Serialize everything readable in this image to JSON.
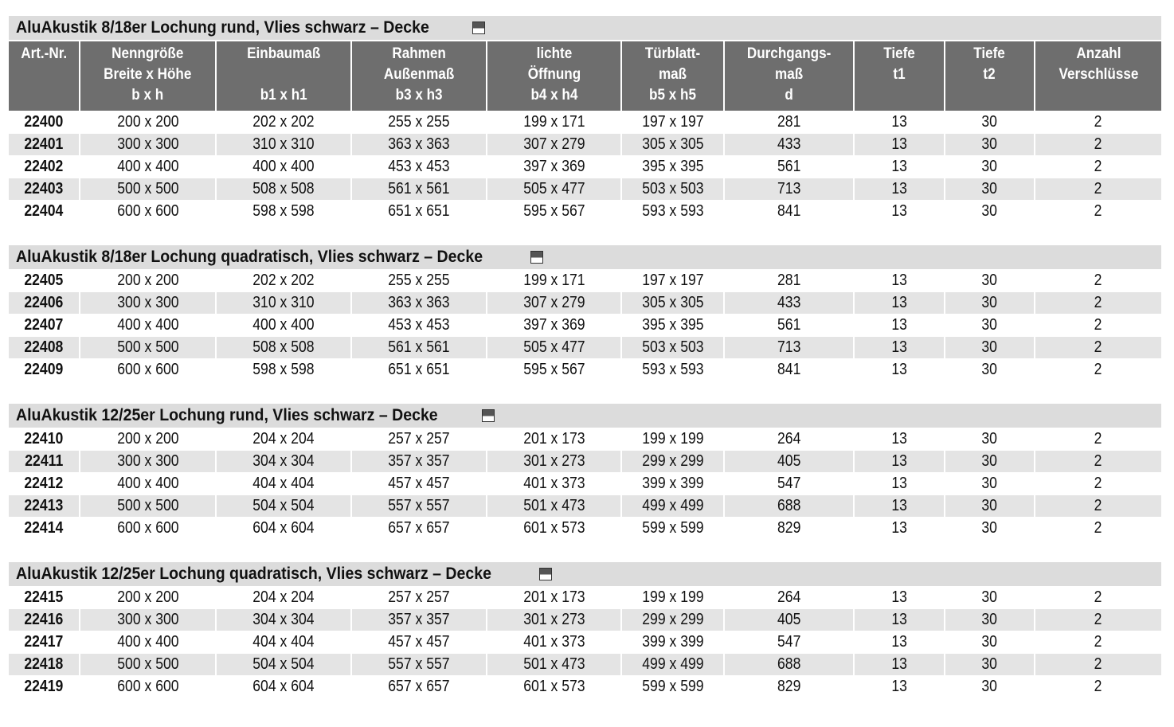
{
  "headers": [
    "Art.-Nr.",
    "Nenngröße\nBreite x Höhe\nb x h",
    "Einbaumaß\n\nb1 x h1",
    "Rahmen\nAußenmaß\nb3 x h3",
    "lichte\nÖffnung\nb4 x h4",
    "Türblatt-\nmaß\nb5 x h5",
    "Durchgangs-\nmaß\nd",
    "Tiefe\nt1",
    "Tiefe\nt2",
    "Anzahl\nVerschlüsse"
  ],
  "icon": "section-square-icon",
  "sections": [
    {
      "title": "AluAkustik 8/18er Lochung rund, Vlies schwarz – Decke",
      "rows": [
        [
          "22400",
          "200 x 200",
          "202 x 202",
          "255 x 255",
          "199 x 171",
          "197 x 197",
          "281",
          "13",
          "30",
          "2"
        ],
        [
          "22401",
          "300 x 300",
          "310 x 310",
          "363 x 363",
          "307 x 279",
          "305 x 305",
          "433",
          "13",
          "30",
          "2"
        ],
        [
          "22402",
          "400 x 400",
          "400 x 400",
          "453 x 453",
          "397 x 369",
          "395 x 395",
          "561",
          "13",
          "30",
          "2"
        ],
        [
          "22403",
          "500 x 500",
          "508 x 508",
          "561 x 561",
          "505 x 477",
          "503 x 503",
          "713",
          "13",
          "30",
          "2"
        ],
        [
          "22404",
          "600 x 600",
          "598 x 598",
          "651 x 651",
          "595 x 567",
          "593 x 593",
          "841",
          "13",
          "30",
          "2"
        ]
      ]
    },
    {
      "title": "AluAkustik 8/18er Lochung quadratisch, Vlies schwarz – Decke",
      "rows": [
        [
          "22405",
          "200 x 200",
          "202 x 202",
          "255 x 255",
          "199 x 171",
          "197 x 197",
          "281",
          "13",
          "30",
          "2"
        ],
        [
          "22406",
          "300 x 300",
          "310 x 310",
          "363 x 363",
          "307 x 279",
          "305 x 305",
          "433",
          "13",
          "30",
          "2"
        ],
        [
          "22407",
          "400 x 400",
          "400 x 400",
          "453 x 453",
          "397 x 369",
          "395 x 395",
          "561",
          "13",
          "30",
          "2"
        ],
        [
          "22408",
          "500 x 500",
          "508 x 508",
          "561 x 561",
          "505 x 477",
          "503 x 503",
          "713",
          "13",
          "30",
          "2"
        ],
        [
          "22409",
          "600 x 600",
          "598 x 598",
          "651 x 651",
          "595 x 567",
          "593 x 593",
          "841",
          "13",
          "30",
          "2"
        ]
      ]
    },
    {
      "title": "AluAkustik 12/25er Lochung rund, Vlies schwarz – Decke",
      "rows": [
        [
          "22410",
          "200 x 200",
          "204 x 204",
          "257 x 257",
          "201 x 173",
          "199 x 199",
          "264",
          "13",
          "30",
          "2"
        ],
        [
          "22411",
          "300 x 300",
          "304 x 304",
          "357 x 357",
          "301 x 273",
          "299 x 299",
          "405",
          "13",
          "30",
          "2"
        ],
        [
          "22412",
          "400 x 400",
          "404 x 404",
          "457 x 457",
          "401 x 373",
          "399 x 399",
          "547",
          "13",
          "30",
          "2"
        ],
        [
          "22413",
          "500 x 500",
          "504 x 504",
          "557 x 557",
          "501 x 473",
          "499 x 499",
          "688",
          "13",
          "30",
          "2"
        ],
        [
          "22414",
          "600 x 600",
          "604 x 604",
          "657 x 657",
          "601 x 573",
          "599 x 599",
          "829",
          "13",
          "30",
          "2"
        ]
      ]
    },
    {
      "title": "AluAkustik 12/25er Lochung quadratisch, Vlies schwarz – Decke",
      "rows": [
        [
          "22415",
          "200 x 200",
          "204 x 204",
          "257 x 257",
          "201 x 173",
          "199 x 199",
          "264",
          "13",
          "30",
          "2"
        ],
        [
          "22416",
          "300 x 300",
          "304 x 304",
          "357 x 357",
          "301 x 273",
          "299 x 299",
          "405",
          "13",
          "30",
          "2"
        ],
        [
          "22417",
          "400 x 400",
          "404 x 404",
          "457 x 457",
          "401 x 373",
          "399 x 399",
          "547",
          "13",
          "30",
          "2"
        ],
        [
          "22418",
          "500 x 500",
          "504 x 504",
          "557 x 557",
          "501 x 473",
          "499 x 499",
          "688",
          "13",
          "30",
          "2"
        ],
        [
          "22419",
          "600 x 600",
          "604 x 604",
          "657 x 657",
          "601 x 573",
          "599 x 599",
          "829",
          "13",
          "30",
          "2"
        ]
      ]
    }
  ]
}
